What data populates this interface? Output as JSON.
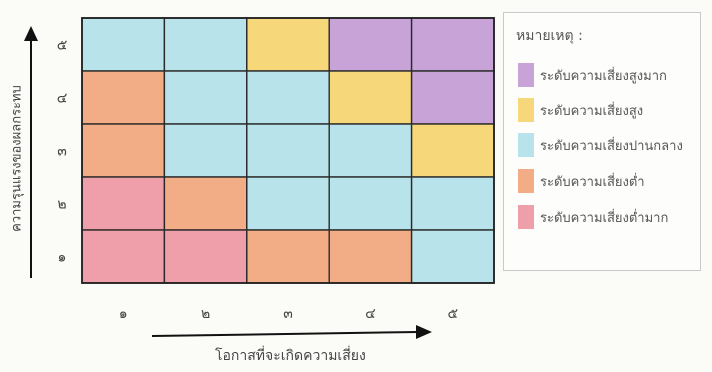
{
  "chart_data": {
    "type": "heatmap",
    "xlabel": "โอกาสที่จะเกิดความเสี่ยง",
    "ylabel": "ความรุนแรงของผลกระทบ",
    "x_ticks": [
      "๑",
      "๒",
      "๓",
      "๔",
      "๕"
    ],
    "y_ticks": [
      "๑",
      "๒",
      "๓",
      "๔",
      "๕"
    ],
    "levels": [
      {
        "key": "very_high",
        "label": "ระดับความเสี่ยงสูงมาก",
        "color": "#c7a3d8"
      },
      {
        "key": "high",
        "label": "ระดับความเสี่ยงสูง",
        "color": "#f6d87a"
      },
      {
        "key": "medium",
        "label": "ระดับความเสี่ยงปานกลาง",
        "color": "#b9e3ea"
      },
      {
        "key": "low",
        "label": "ระดับความเสี่ยงต่ำ",
        "color": "#f2ad86"
      },
      {
        "key": "very_low",
        "label": "ระดับความเสี่ยงต่ำมาก",
        "color": "#ef9fa9"
      }
    ],
    "grid_rows_top_to_bottom": [
      [
        "medium",
        "medium",
        "high",
        "very_high",
        "very_high"
      ],
      [
        "low",
        "medium",
        "medium",
        "high",
        "very_high"
      ],
      [
        "low",
        "medium",
        "medium",
        "medium",
        "high"
      ],
      [
        "very_low",
        "low",
        "medium",
        "medium",
        "medium"
      ],
      [
        "very_low",
        "very_low",
        "low",
        "low",
        "medium"
      ]
    ]
  },
  "legend": {
    "title": "หมายเหตุ :"
  },
  "legend_display_order": [
    "very_high",
    "high",
    "medium",
    "low",
    "very_low"
  ]
}
